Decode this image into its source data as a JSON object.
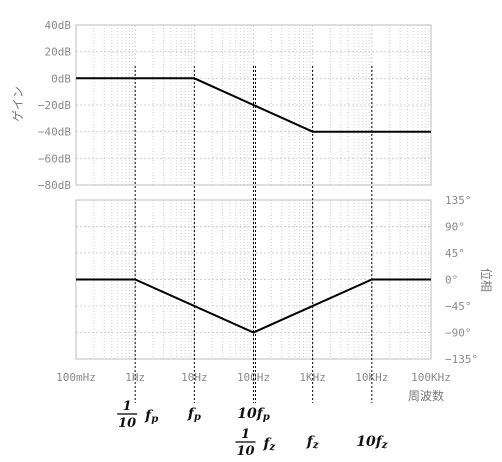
{
  "chart_data": [
    {
      "type": "line",
      "x_scale": "log",
      "xlim": [
        0.1,
        100000
      ],
      "ylim": [
        -80,
        40
      ],
      "y_ticks": [
        "40dB",
        "20dB",
        "0dB",
        "−20dB",
        "−40dB",
        "−60dB",
        "−80dB"
      ],
      "ylabel": "ゲイン",
      "grid": true,
      "series": [
        {
          "x": [
            0.1,
            10,
            1000,
            100000
          ],
          "y": [
            0,
            0,
            -40,
            -40
          ]
        }
      ]
    },
    {
      "type": "line",
      "x_scale": "log",
      "xlim": [
        0.1,
        100000
      ],
      "ylim": [
        -135,
        135
      ],
      "y_ticks": [
        "135°",
        "90°",
        "45°",
        "0°",
        "−45°",
        "−90°",
        "−135°"
      ],
      "ylabel": "位相",
      "xlabel": "周波数",
      "x_ticks": [
        "100mHz",
        "1Hz",
        "10Hz",
        "100Hz",
        "1KHz",
        "10KHz",
        "100KHz"
      ],
      "grid": true,
      "series": [
        {
          "x": [
            0.1,
            1,
            100,
            10000,
            100000
          ],
          "y": [
            0,
            0,
            -90,
            0,
            0
          ]
        }
      ]
    }
  ],
  "markers": [
    {
      "x": 1,
      "prefix": "1/10",
      "symbol": "f",
      "sub": "p"
    },
    {
      "x": 10,
      "prefix": "",
      "symbol": "f",
      "sub": "p"
    },
    {
      "x": 100,
      "prefix": "10",
      "symbol": "f",
      "sub": "p"
    },
    {
      "x": 100,
      "prefix": "1/10",
      "symbol": "f",
      "sub": "z"
    },
    {
      "x": 1000,
      "prefix": "",
      "symbol": "f",
      "sub": "z"
    },
    {
      "x": 10000,
      "prefix": "10",
      "symbol": "f",
      "sub": "z"
    }
  ],
  "colors": {
    "grid": "#d2d2d2",
    "frame": "#bdbdbd",
    "line": "#000000",
    "text": "#8a8a8a"
  }
}
